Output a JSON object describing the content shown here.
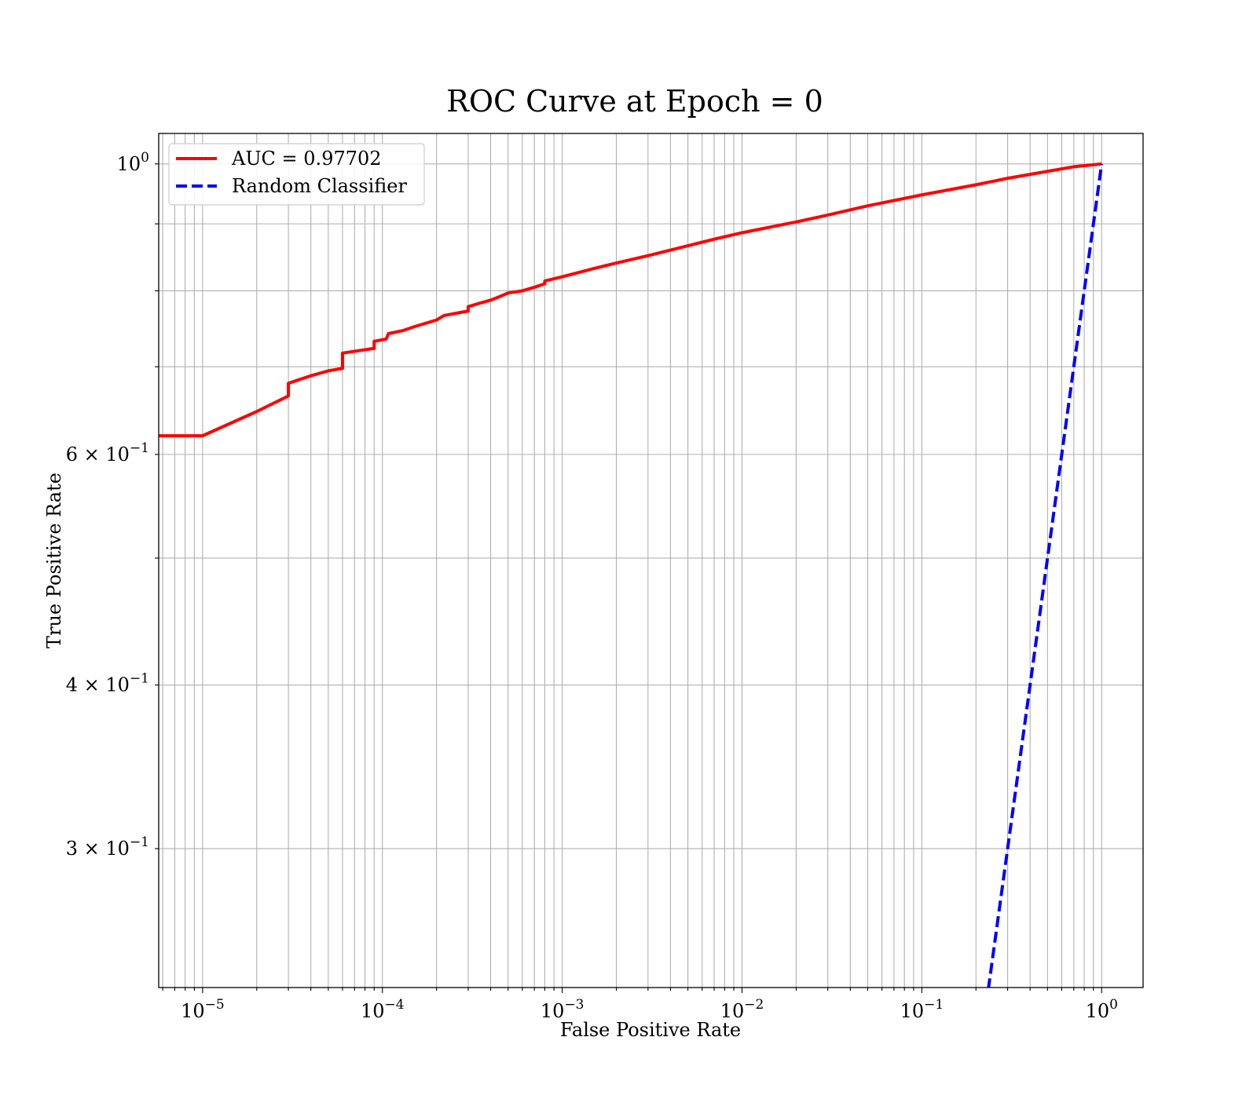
{
  "chart_data": {
    "type": "line",
    "title": "ROC Curve at Epoch = 0",
    "xlabel": "False Positive Rate",
    "ylabel": "True Positive Rate",
    "xscale": "log",
    "yscale": "log",
    "xlim": [
      5.7e-06,
      1.7
    ],
    "ylim": [
      0.235,
      1.055
    ],
    "grid": "both (major and minor)",
    "legend_position": "upper-left",
    "x_tick_labels": [
      {
        "value": 1e-05,
        "base": "10",
        "exp": "−5"
      },
      {
        "value": 0.0001,
        "base": "10",
        "exp": "−4"
      },
      {
        "value": 0.001,
        "base": "10",
        "exp": "−3"
      },
      {
        "value": 0.01,
        "base": "10",
        "exp": "−2"
      },
      {
        "value": 0.1,
        "base": "10",
        "exp": "−1"
      },
      {
        "value": 1,
        "base": "10",
        "exp": "0"
      }
    ],
    "y_tick_labels": [
      {
        "value": 1,
        "mant": "",
        "base": "10",
        "exp": "0"
      },
      {
        "value": 0.6,
        "mant": "6 × ",
        "base": "10",
        "exp": "−1"
      },
      {
        "value": 0.4,
        "mant": "4 × ",
        "base": "10",
        "exp": "−1"
      },
      {
        "value": 0.3,
        "mant": "3 × ",
        "base": "10",
        "exp": "−1"
      }
    ],
    "series": [
      {
        "name": "AUC = 0.97702",
        "color": "#ff0000",
        "style": "solid",
        "points": [
          [
            5.7e-06,
            0.62
          ],
          [
            1e-05,
            0.62
          ],
          [
            2e-05,
            0.647
          ],
          [
            3e-05,
            0.665
          ],
          [
            3e-05,
            0.68
          ],
          [
            4e-05,
            0.689
          ],
          [
            5e-05,
            0.695
          ],
          [
            6e-05,
            0.698
          ],
          [
            6e-05,
            0.717
          ],
          [
            9e-05,
            0.723
          ],
          [
            9e-05,
            0.732
          ],
          [
            0.000105,
            0.735
          ],
          [
            0.000108,
            0.742
          ],
          [
            0.00013,
            0.746
          ],
          [
            0.00015,
            0.751
          ],
          [
            0.0002,
            0.76
          ],
          [
            0.00022,
            0.766
          ],
          [
            0.00027,
            0.77
          ],
          [
            0.0003,
            0.772
          ],
          [
            0.0003,
            0.778
          ],
          [
            0.00035,
            0.783
          ],
          [
            0.0004,
            0.787
          ],
          [
            0.00045,
            0.792
          ],
          [
            0.0005,
            0.797
          ],
          [
            0.0006,
            0.8
          ],
          [
            0.0007,
            0.805
          ],
          [
            0.0008,
            0.81
          ],
          [
            0.0008,
            0.814
          ],
          [
            0.001,
            0.82
          ],
          [
            0.0015,
            0.832
          ],
          [
            0.002,
            0.84
          ],
          [
            0.003,
            0.851
          ],
          [
            0.005,
            0.866
          ],
          [
            0.007,
            0.876
          ],
          [
            0.01,
            0.886
          ],
          [
            0.02,
            0.903
          ],
          [
            0.03,
            0.914
          ],
          [
            0.05,
            0.929
          ],
          [
            0.1,
            0.947
          ],
          [
            0.2,
            0.964
          ],
          [
            0.3,
            0.975
          ],
          [
            0.5,
            0.987
          ],
          [
            0.7,
            0.995
          ],
          [
            1.0,
            1.0
          ]
        ]
      },
      {
        "name": "Random Classifier",
        "color": "#0000ff",
        "style": "dashed",
        "points": [
          [
            0.21,
            0.21
          ],
          [
            0.3,
            0.3
          ],
          [
            0.5,
            0.5
          ],
          [
            0.7,
            0.7
          ],
          [
            1.0,
            1.0
          ]
        ]
      }
    ]
  }
}
